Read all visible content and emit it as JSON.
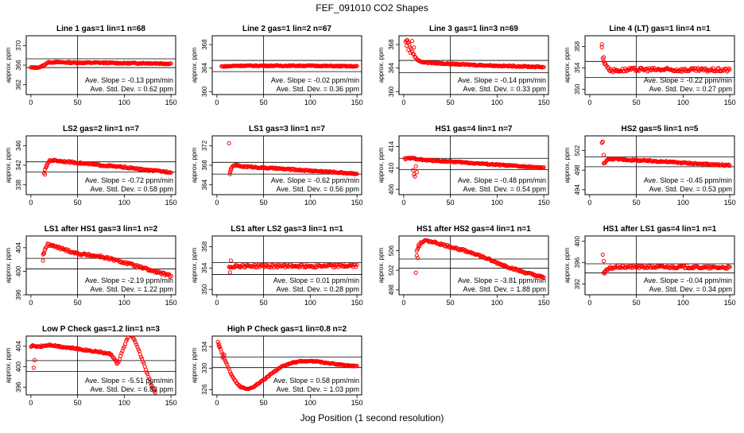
{
  "figure": {
    "title": "FEF_091010  CO2 Shapes",
    "xlabel": "Jog Position (1 second resolution)"
  },
  "chart_data": [
    {
      "type": "scatter",
      "title": "Line 1 gas=1 lin=1 n=68",
      "ylabel": "approx. ppm",
      "xlim": [
        -5,
        155
      ],
      "ylim": [
        360,
        372
      ],
      "xticks": [
        0,
        50,
        100,
        150
      ],
      "yticks": [
        362,
        366,
        370
      ],
      "hlines": [
        365.5,
        367.3
      ],
      "vline": 50,
      "slope_text": "Ave. Slope = -0.13  ppm/min",
      "std_text": "Ave. Std. Dev. = 0.62  ppm",
      "x": [
        0,
        5,
        10,
        12,
        14,
        16,
        18,
        20,
        30,
        50,
        75,
        100,
        125,
        150
      ],
      "y": [
        365.5,
        365.5,
        365.6,
        365.8,
        366.0,
        366.3,
        366.5,
        366.6,
        366.6,
        366.5,
        366.5,
        366.4,
        366.4,
        366.3
      ],
      "fill_from": 0,
      "fill_to": 150,
      "noise": 0.12
    },
    {
      "type": "scatter",
      "title": "Line 2 gas=1 lin=2 n=67",
      "ylabel": "approx. ppm",
      "xlim": [
        -5,
        155
      ],
      "ylim": [
        359.5,
        369.5
      ],
      "xticks": [
        0,
        50,
        100,
        150
      ],
      "yticks": [
        360,
        364,
        368
      ],
      "hlines": [
        365.3,
        363.4
      ],
      "vline": 50,
      "slope_text": "Ave. Slope = -0.02  ppm/min",
      "std_text": "Ave. Std. Dev. = 0.36  ppm",
      "x": [
        5,
        10,
        20,
        50,
        100,
        150
      ],
      "y": [
        364.3,
        364.3,
        364.4,
        364.4,
        364.4,
        364.3
      ],
      "fill_from": 5,
      "fill_to": 150,
      "noise": 0.08
    },
    {
      "type": "scatter",
      "title": "Line 3 gas=1 lin=3 n=69",
      "ylabel": "approx. ppm",
      "xlim": [
        -5,
        155
      ],
      "ylim": [
        359.5,
        369.5
      ],
      "xticks": [
        0,
        50,
        100,
        150
      ],
      "yticks": [
        360,
        364,
        368
      ],
      "hlines": [
        363.2,
        365.3
      ],
      "vline": 50,
      "slope_text": "Ave. Slope = -0.14  ppm/min",
      "std_text": "Ave. Std. Dev. = 0.33  ppm",
      "x": [
        2,
        4,
        6,
        8,
        10,
        12,
        14,
        20,
        50,
        100,
        150
      ],
      "y": [
        368.5,
        368.8,
        368.0,
        367.2,
        366.5,
        366.0,
        365.5,
        365.0,
        364.7,
        364.4,
        364.2
      ],
      "fill_from": 2,
      "fill_to": 150,
      "noise": 0.1,
      "scatter_extra": [
        [
          3,
          367.8
        ],
        [
          5,
          367.1
        ],
        [
          7,
          366.6
        ],
        [
          9,
          368.6
        ],
        [
          11,
          367.5
        ]
      ]
    },
    {
      "type": "scatter",
      "title": "Line 4 (LT) gas=1 lin=4 n=1",
      "ylabel": "approx. ppm",
      "xlim": [
        -5,
        155
      ],
      "ylim": [
        349,
        360
      ],
      "xticks": [
        0,
        50,
        100,
        150
      ],
      "yticks": [
        350,
        354,
        358
      ],
      "hlines": [
        355.2,
        352.2
      ],
      "vline": 50,
      "slope_text": "Ave. Slope = -0.22  ppm/min",
      "std_text": "Ave. Std. Dev. = 0.27  ppm",
      "x": [
        13,
        14,
        16,
        18,
        20,
        25,
        50,
        100,
        150
      ],
      "y": [
        358,
        355.5,
        355,
        354.5,
        353.8,
        353.5,
        353.7,
        353.6,
        353.6
      ],
      "fill_from": 13,
      "fill_to": 150,
      "noise": 0.35,
      "scatter_extra": [
        [
          13,
          358.4
        ],
        [
          15,
          356
        ]
      ]
    },
    {
      "type": "scatter",
      "title": "LS2 gas=2 lin=1 n=7",
      "ylabel": "approx. ppm",
      "xlim": [
        -5,
        155
      ],
      "ylim": [
        336,
        348
      ],
      "xticks": [
        0,
        50,
        100,
        150
      ],
      "yticks": [
        338,
        342,
        346
      ],
      "hlines": [
        342.7,
        340.6
      ],
      "vline": 50,
      "slope_text": "Ave. Slope = -0.72  ppm/min",
      "std_text": "Ave. Std. Dev. = 0.58  ppm",
      "x": [
        14,
        16,
        18,
        20,
        25,
        50,
        75,
        100,
        125,
        150
      ],
      "y": [
        340.5,
        341.5,
        342.4,
        343.0,
        343.0,
        342.5,
        342.0,
        341.6,
        341.0,
        340.6
      ],
      "fill_from": 14,
      "fill_to": 150,
      "noise": 0.15,
      "scatter_extra": [
        [
          15,
          340.1
        ],
        [
          17,
          341.8
        ]
      ]
    },
    {
      "type": "scatter",
      "title": "LS1 gas=3 lin=1 n=7",
      "ylabel": "approx. ppm",
      "xlim": [
        -5,
        155
      ],
      "ylim": [
        362,
        374
      ],
      "xticks": [
        0,
        50,
        100,
        150
      ],
      "yticks": [
        364,
        368,
        372
      ],
      "hlines": [
        368.6,
        366.2
      ],
      "vline": 50,
      "slope_text": "Ave. Slope = -0.62  ppm/min",
      "std_text": "Ave. Std. Dev. = 0.56  ppm",
      "x": [
        14,
        16,
        18,
        20,
        25,
        50,
        75,
        100,
        125,
        150
      ],
      "y": [
        366.8,
        367.5,
        368.0,
        368.0,
        367.8,
        367.5,
        367.2,
        366.9,
        366.6,
        366.3
      ],
      "fill_from": 14,
      "fill_to": 150,
      "noise": 0.15,
      "scatter_extra": [
        [
          13,
          372.5
        ],
        [
          14,
          366.2
        ],
        [
          15,
          367.0
        ]
      ]
    },
    {
      "type": "scatter",
      "title": "HS1 gas=4 lin=1 n=7",
      "ylabel": "approx. ppm",
      "xlim": [
        -5,
        155
      ],
      "ylim": [
        405,
        416
      ],
      "xticks": [
        0,
        50,
        100,
        150
      ],
      "yticks": [
        406,
        410,
        414
      ],
      "hlines": [
        411.8,
        409.7
      ],
      "vline": 50,
      "slope_text": "Ave. Slope = -0.48  ppm/min",
      "std_text": "Ave. Std. Dev. = 0.54  ppm",
      "x": [
        1,
        5,
        10,
        15,
        20,
        50,
        75,
        100,
        125,
        150
      ],
      "y": [
        411.7,
        411.8,
        411.8,
        411.7,
        411.5,
        411.2,
        410.9,
        410.6,
        410.3,
        410.0
      ],
      "fill_from": 1,
      "fill_to": 150,
      "noise": 0.12,
      "scatter_extra": [
        [
          10,
          409.6
        ],
        [
          11,
          408.8
        ],
        [
          12,
          408.4
        ],
        [
          13,
          410.3
        ],
        [
          14,
          409.2
        ]
      ]
    },
    {
      "type": "scatter",
      "title": "HS2 gas=5 lin=1 n=5",
      "ylabel": "approx. ppm",
      "xlim": [
        -5,
        155
      ],
      "ylim": [
        493,
        505
      ],
      "xticks": [
        0,
        50,
        100,
        150
      ],
      "yticks": [
        494,
        498,
        502
      ],
      "hlines": [
        500.7,
        498.7
      ],
      "vline": 50,
      "slope_text": "Ave. Slope = -0.45  ppm/min",
      "std_text": "Ave. Std. Dev. = 0.53  ppm",
      "x": [
        15,
        17,
        20,
        25,
        50,
        75,
        100,
        125,
        150
      ],
      "y": [
        499.3,
        499.8,
        500.2,
        500.3,
        500.0,
        499.8,
        499.5,
        499.2,
        499.0
      ],
      "fill_from": 15,
      "fill_to": 150,
      "noise": 0.15,
      "scatter_extra": [
        [
          13,
          503.6
        ],
        [
          14,
          503.8
        ],
        [
          15,
          501.1
        ],
        [
          16,
          499.5
        ]
      ]
    },
    {
      "type": "scatter",
      "title": "LS1 after HS1 gas=3 lin=1 n=2",
      "ylabel": "approx. ppm",
      "xlim": [
        -5,
        155
      ],
      "ylim": [
        396,
        406
      ],
      "xticks": [
        0,
        50,
        100,
        150
      ],
      "yticks": [
        396,
        400,
        404
      ],
      "hlines": [
        402.2,
        400.4
      ],
      "vline": 50,
      "slope_text": "Ave. Slope = -2.19  ppm/min",
      "std_text": "Ave. Std. Dev. = 1.22  ppm",
      "x": [
        13,
        15,
        18,
        20,
        30,
        50,
        75,
        100,
        125,
        150
      ],
      "y": [
        402.8,
        403.8,
        404.5,
        404.5,
        404.0,
        403.0,
        402.5,
        401.5,
        400.3,
        399.2
      ],
      "fill_from": 13,
      "fill_to": 150,
      "noise": 0.2,
      "scatter_extra": [
        [
          13,
          401.8
        ],
        [
          14,
          403.0
        ]
      ]
    },
    {
      "type": "scatter",
      "title": "LS1 after LS2 gas=3 lin=1 n=1",
      "ylabel": "approx. ppm",
      "xlim": [
        -5,
        155
      ],
      "ylim": [
        349,
        360
      ],
      "xticks": [
        0,
        50,
        100,
        150
      ],
      "yticks": [
        350,
        354,
        358
      ],
      "hlines": [
        355.0,
        352.8
      ],
      "vline": 50,
      "slope_text": "Ave. Slope = 0.01  ppm/min",
      "std_text": "Ave. Std. Dev. = 0.28  ppm",
      "x": [
        13,
        20,
        50,
        75,
        100,
        125,
        150
      ],
      "y": [
        354.2,
        354.4,
        354.4,
        354.4,
        354.4,
        354.4,
        354.4
      ],
      "fill_from": 13,
      "fill_to": 150,
      "noise": 0.3,
      "scatter_extra": [
        [
          14,
          353.2
        ],
        [
          15,
          355.4
        ]
      ]
    },
    {
      "type": "scatter",
      "title": "HS1 after HS2 gas=4 lin=1 n=1",
      "ylabel": "approx. ppm",
      "xlim": [
        -5,
        155
      ],
      "ylim": [
        497,
        509
      ],
      "xticks": [
        0,
        50,
        100,
        150
      ],
      "yticks": [
        498,
        502,
        506
      ],
      "hlines": [
        504.3,
        502.4
      ],
      "vline": 50,
      "slope_text": "Ave. Slope = -3.81  ppm/min",
      "std_text": "Ave. Std. Dev. = 1.88  ppm",
      "x": [
        14,
        18,
        22,
        30,
        40,
        50,
        75,
        100,
        125,
        150
      ],
      "y": [
        506,
        507.5,
        508,
        507.9,
        507.3,
        506.8,
        505.5,
        503.5,
        501.8,
        500.5
      ],
      "fill_from": 14,
      "fill_to": 150,
      "noise": 0.2,
      "scatter_extra": [
        [
          13,
          501.5
        ],
        [
          14,
          505.0
        ],
        [
          15,
          504.5
        ],
        [
          16,
          507.2
        ]
      ]
    },
    {
      "type": "scatter",
      "title": "HS1 after LS1 gas=4 lin=1 n=1",
      "ylabel": "approx. ppm",
      "xlim": [
        -5,
        155
      ],
      "ylim": [
        390,
        401
      ],
      "xticks": [
        0,
        50,
        100,
        150
      ],
      "yticks": [
        392,
        396,
        400
      ],
      "hlines": [
        395.8,
        394.1
      ],
      "vline": 50,
      "slope_text": "Ave. Slope = -0.04  ppm/min",
      "std_text": "Ave. Std. Dev. = 0.34  ppm",
      "x": [
        15,
        18,
        22,
        30,
        50,
        75,
        100,
        125,
        150
      ],
      "y": [
        394.2,
        394.5,
        395.0,
        395.2,
        395.2,
        395.2,
        395.2,
        395.1,
        395.1
      ],
      "fill_from": 15,
      "fill_to": 150,
      "noise": 0.25,
      "scatter_extra": [
        [
          14,
          397.5
        ],
        [
          15,
          396.3
        ],
        [
          16,
          394.0
        ]
      ]
    },
    {
      "type": "scatter",
      "title": "Low P Check gas=1.2 lin=1 n=3",
      "ylabel": "approx. ppm",
      "xlim": [
        -5,
        155
      ],
      "ylim": [
        394.5,
        406
      ],
      "xticks": [
        0,
        50,
        100,
        150
      ],
      "yticks": [
        396,
        400,
        404
      ],
      "hlines": [
        401.2,
        399.1
      ],
      "vline": 50,
      "slope_text": "Ave. Slope = -5.51  ppm/min",
      "std_text": "Ave. Std. Dev. = 6.83  ppm",
      "x": [
        0,
        5,
        10,
        20,
        30,
        50,
        70,
        85,
        90,
        92,
        94,
        96,
        98,
        100,
        103,
        106,
        110,
        115,
        120,
        125,
        130,
        133
      ],
      "y": [
        404.0,
        404.0,
        404.0,
        404.3,
        404.0,
        403.5,
        403.0,
        402.5,
        401.5,
        400.5,
        401.0,
        402.0,
        403.0,
        404.0,
        405.5,
        406.5,
        405.5,
        403.5,
        401.0,
        398.5,
        396.0,
        395.0
      ],
      "fill_from": 0,
      "fill_to": 133,
      "noise": 0.15,
      "scatter_extra": [
        [
          3,
          399.8
        ],
        [
          4,
          401.3
        ],
        [
          2,
          404.2
        ]
      ]
    },
    {
      "type": "scatter",
      "title": "High P Check gas=1 lin=0.8 n=2",
      "ylabel": "approx. ppm",
      "xlim": [
        -5,
        155
      ],
      "ylim": [
        325,
        336
      ],
      "xticks": [
        0,
        50,
        100,
        150
      ],
      "yticks": [
        326,
        330,
        334
      ],
      "hlines": [
        332.1,
        330.1
      ],
      "vline": 50,
      "slope_text": "Ave. Slope = 0.58  ppm/min",
      "std_text": "Ave. Std. Dev. = 1.03  ppm",
      "x": [
        1,
        5,
        10,
        15,
        20,
        25,
        30,
        35,
        40,
        50,
        60,
        70,
        80,
        90,
        100,
        110,
        120,
        130,
        140,
        150
      ],
      "y": [
        335.0,
        333.0,
        331.0,
        329.0,
        327.5,
        326.5,
        326.2,
        326.2,
        326.6,
        327.8,
        329.2,
        330.3,
        331.0,
        331.3,
        331.3,
        331.2,
        330.9,
        330.7,
        330.5,
        330.4
      ],
      "fill_from": 1,
      "fill_to": 150,
      "noise": 0.1,
      "scatter_extra": [
        [
          2,
          334.2
        ],
        [
          6,
          332.0
        ],
        [
          3,
          334.0
        ],
        [
          8,
          332.5
        ]
      ]
    }
  ]
}
